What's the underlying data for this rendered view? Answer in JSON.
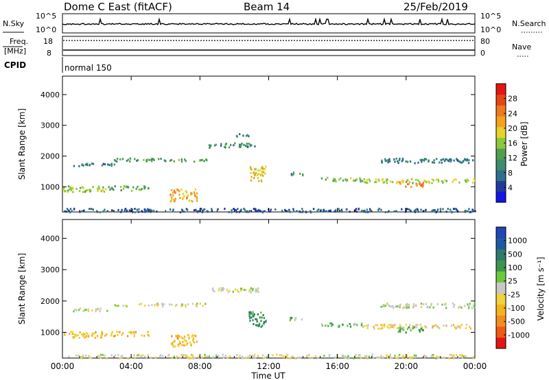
{
  "header": {
    "station": "Dome C East (fitACF)",
    "beam": "Beam 14",
    "date": "25/Feb/2019"
  },
  "top_panels": {
    "nsky_label": "N.Sky",
    "nsky_ticks": [
      "10^5",
      "10^0"
    ],
    "nsearch_label": "N.Search",
    "nsearch_ticks": [
      "10^5",
      "10^0"
    ],
    "freq_label_1": "Freq.",
    "freq_label_2": "[MHz]",
    "freq_ticks": [
      "18",
      "8"
    ],
    "nave_label": "Nave",
    "nave_ticks": [
      "80",
      "0"
    ],
    "cpid_label": "CPID",
    "cpid_value": "normal 150"
  },
  "colors": {
    "power_scale": [
      "#1414e6",
      "#1e3ca0",
      "#2e6f8c",
      "#3c8c6e",
      "#50a050",
      "#8cc83c",
      "#e6d228",
      "#f5a01e",
      "#f0781e",
      "#e64614",
      "#e61414"
    ],
    "velocity_scale": [
      "#e61414",
      "#f05a14",
      "#f58c1e",
      "#f5b41e",
      "#f0d23c",
      "#c8c8c8",
      "#6ec83c",
      "#3c9650",
      "#2e7a6e",
      "#1e5aa0",
      "#1e46b4"
    ]
  },
  "chart_data": [
    {
      "type": "heatmap",
      "name_label": "Power [dB]",
      "ylabel": "Slant Range [km]",
      "yticks": [
        1000,
        2000,
        3000,
        4000
      ],
      "ylim": [
        180,
        4600
      ],
      "xlim": [
        0,
        24
      ],
      "colorbar_ticks": [
        "28",
        "24",
        "20",
        "16",
        "12",
        "8",
        "4"
      ],
      "colorbar_range": [
        0,
        30
      ],
      "scatter_bands": [
        {
          "t0": 0.5,
          "t1": 3.0,
          "r0": 1700,
          "r1": 1800,
          "v": 8
        },
        {
          "t0": 3.0,
          "t1": 8.5,
          "r0": 1850,
          "r1": 1950,
          "v": 12
        },
        {
          "t0": 8.5,
          "t1": 11.5,
          "r0": 2300,
          "r1": 2450,
          "v": 10
        },
        {
          "t0": 10.0,
          "t1": 11.0,
          "r0": 2650,
          "r1": 2750,
          "v": 8
        },
        {
          "t0": 0.0,
          "t1": 2.5,
          "r0": 850,
          "r1": 1050,
          "v": 16
        },
        {
          "t0": 2.5,
          "t1": 5.0,
          "r0": 900,
          "r1": 1050,
          "v": 12
        },
        {
          "t0": 6.2,
          "t1": 7.8,
          "r0": 550,
          "r1": 950,
          "v": 20
        },
        {
          "t0": 10.8,
          "t1": 11.8,
          "r0": 1200,
          "r1": 1700,
          "v": 18
        },
        {
          "t0": 13.2,
          "t1": 14.0,
          "r0": 1400,
          "r1": 1500,
          "v": 10
        },
        {
          "t0": 15.0,
          "t1": 17.5,
          "r0": 1200,
          "r1": 1330,
          "v": 14
        },
        {
          "t0": 17.5,
          "t1": 24.0,
          "r0": 1150,
          "r1": 1280,
          "v": 16
        },
        {
          "t0": 19.5,
          "t1": 21.0,
          "r0": 1020,
          "r1": 1200,
          "v": 22
        },
        {
          "t0": 18.5,
          "t1": 24.0,
          "r0": 1800,
          "r1": 1950,
          "v": 8
        },
        {
          "t0": 0.0,
          "t1": 24.0,
          "r0": 200,
          "r1": 320,
          "v": 6
        }
      ]
    },
    {
      "type": "heatmap",
      "name_label": "Velocity [m s⁻¹]",
      "ylabel": "Slant Range [km]",
      "yticks": [
        1000,
        2000,
        3000,
        4000
      ],
      "ylim": [
        180,
        4600
      ],
      "xlim": [
        0,
        24
      ],
      "colorbar_ticks": [
        "1000",
        "500",
        "100",
        "25",
        "-25",
        "-100",
        "-500",
        "-1000"
      ],
      "colorbar_range": [
        -1000,
        1000
      ],
      "scatter_bands": [
        {
          "t0": 0.5,
          "t1": 3.0,
          "r0": 1700,
          "r1": 1800,
          "v": 0
        },
        {
          "t0": 3.0,
          "t1": 8.5,
          "r0": 1850,
          "r1": 1950,
          "v": 0
        },
        {
          "t0": 8.5,
          "t1": 11.5,
          "r0": 2300,
          "r1": 2450,
          "v": 0
        },
        {
          "t0": 0.0,
          "t1": 2.5,
          "r0": 850,
          "r1": 1050,
          "v": -300
        },
        {
          "t0": 2.5,
          "t1": 5.0,
          "r0": 900,
          "r1": 1050,
          "v": -300
        },
        {
          "t0": 6.2,
          "t1": 7.8,
          "r0": 550,
          "r1": 950,
          "v": -300
        },
        {
          "t0": 10.8,
          "t1": 11.8,
          "r0": 1200,
          "r1": 1700,
          "v": 400
        },
        {
          "t0": 13.2,
          "t1": 14.0,
          "r0": 1400,
          "r1": 1500,
          "v": 150
        },
        {
          "t0": 15.0,
          "t1": 17.5,
          "r0": 1200,
          "r1": 1330,
          "v": 200
        },
        {
          "t0": 17.5,
          "t1": 24.0,
          "r0": 1150,
          "r1": 1280,
          "v": -150
        },
        {
          "t0": 19.5,
          "t1": 21.0,
          "r0": 1020,
          "r1": 1200,
          "v": 300
        },
        {
          "t0": 18.5,
          "t1": 24.0,
          "r0": 1800,
          "r1": 1950,
          "v": 0
        },
        {
          "t0": 0.0,
          "t1": 24.0,
          "r0": 200,
          "r1": 320,
          "v": -50
        }
      ]
    }
  ],
  "x_axis": {
    "xlabel": "Time UT",
    "ticks": [
      "00:00",
      "04:00",
      "08:00",
      "12:00",
      "16:00",
      "20:00",
      "00:00"
    ]
  }
}
